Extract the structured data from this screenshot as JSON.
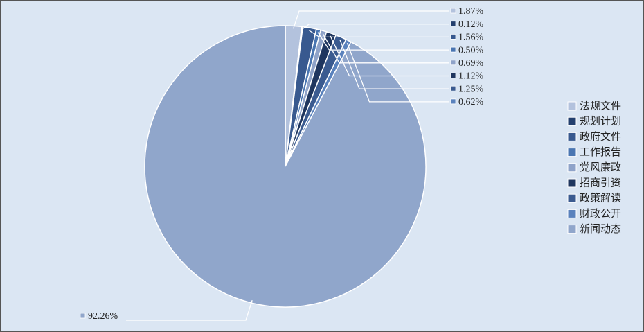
{
  "chart_data": {
    "type": "pie",
    "categories": [
      "法规文件",
      "规划计划",
      "政府文件",
      "工作报告",
      "党风廉政",
      "招商引资",
      "政策解读",
      "财政公开",
      "新闻动态"
    ],
    "values": [
      1.87,
      0.12,
      1.56,
      0.5,
      0.69,
      1.12,
      1.25,
      0.62,
      92.26
    ],
    "value_labels": [
      "1.87%",
      "0.12%",
      "1.56%",
      "0.50%",
      "0.69%",
      "1.12%",
      "1.25%",
      "0.62%",
      "92.26%"
    ],
    "colors": [
      "#b3c2dd",
      "#233f6e",
      "#38598f",
      "#4a76b2",
      "#8fa3c9",
      "#1f365f",
      "#3b5b90",
      "#5a82bd",
      "#90a6cb"
    ],
    "legend": "right"
  }
}
